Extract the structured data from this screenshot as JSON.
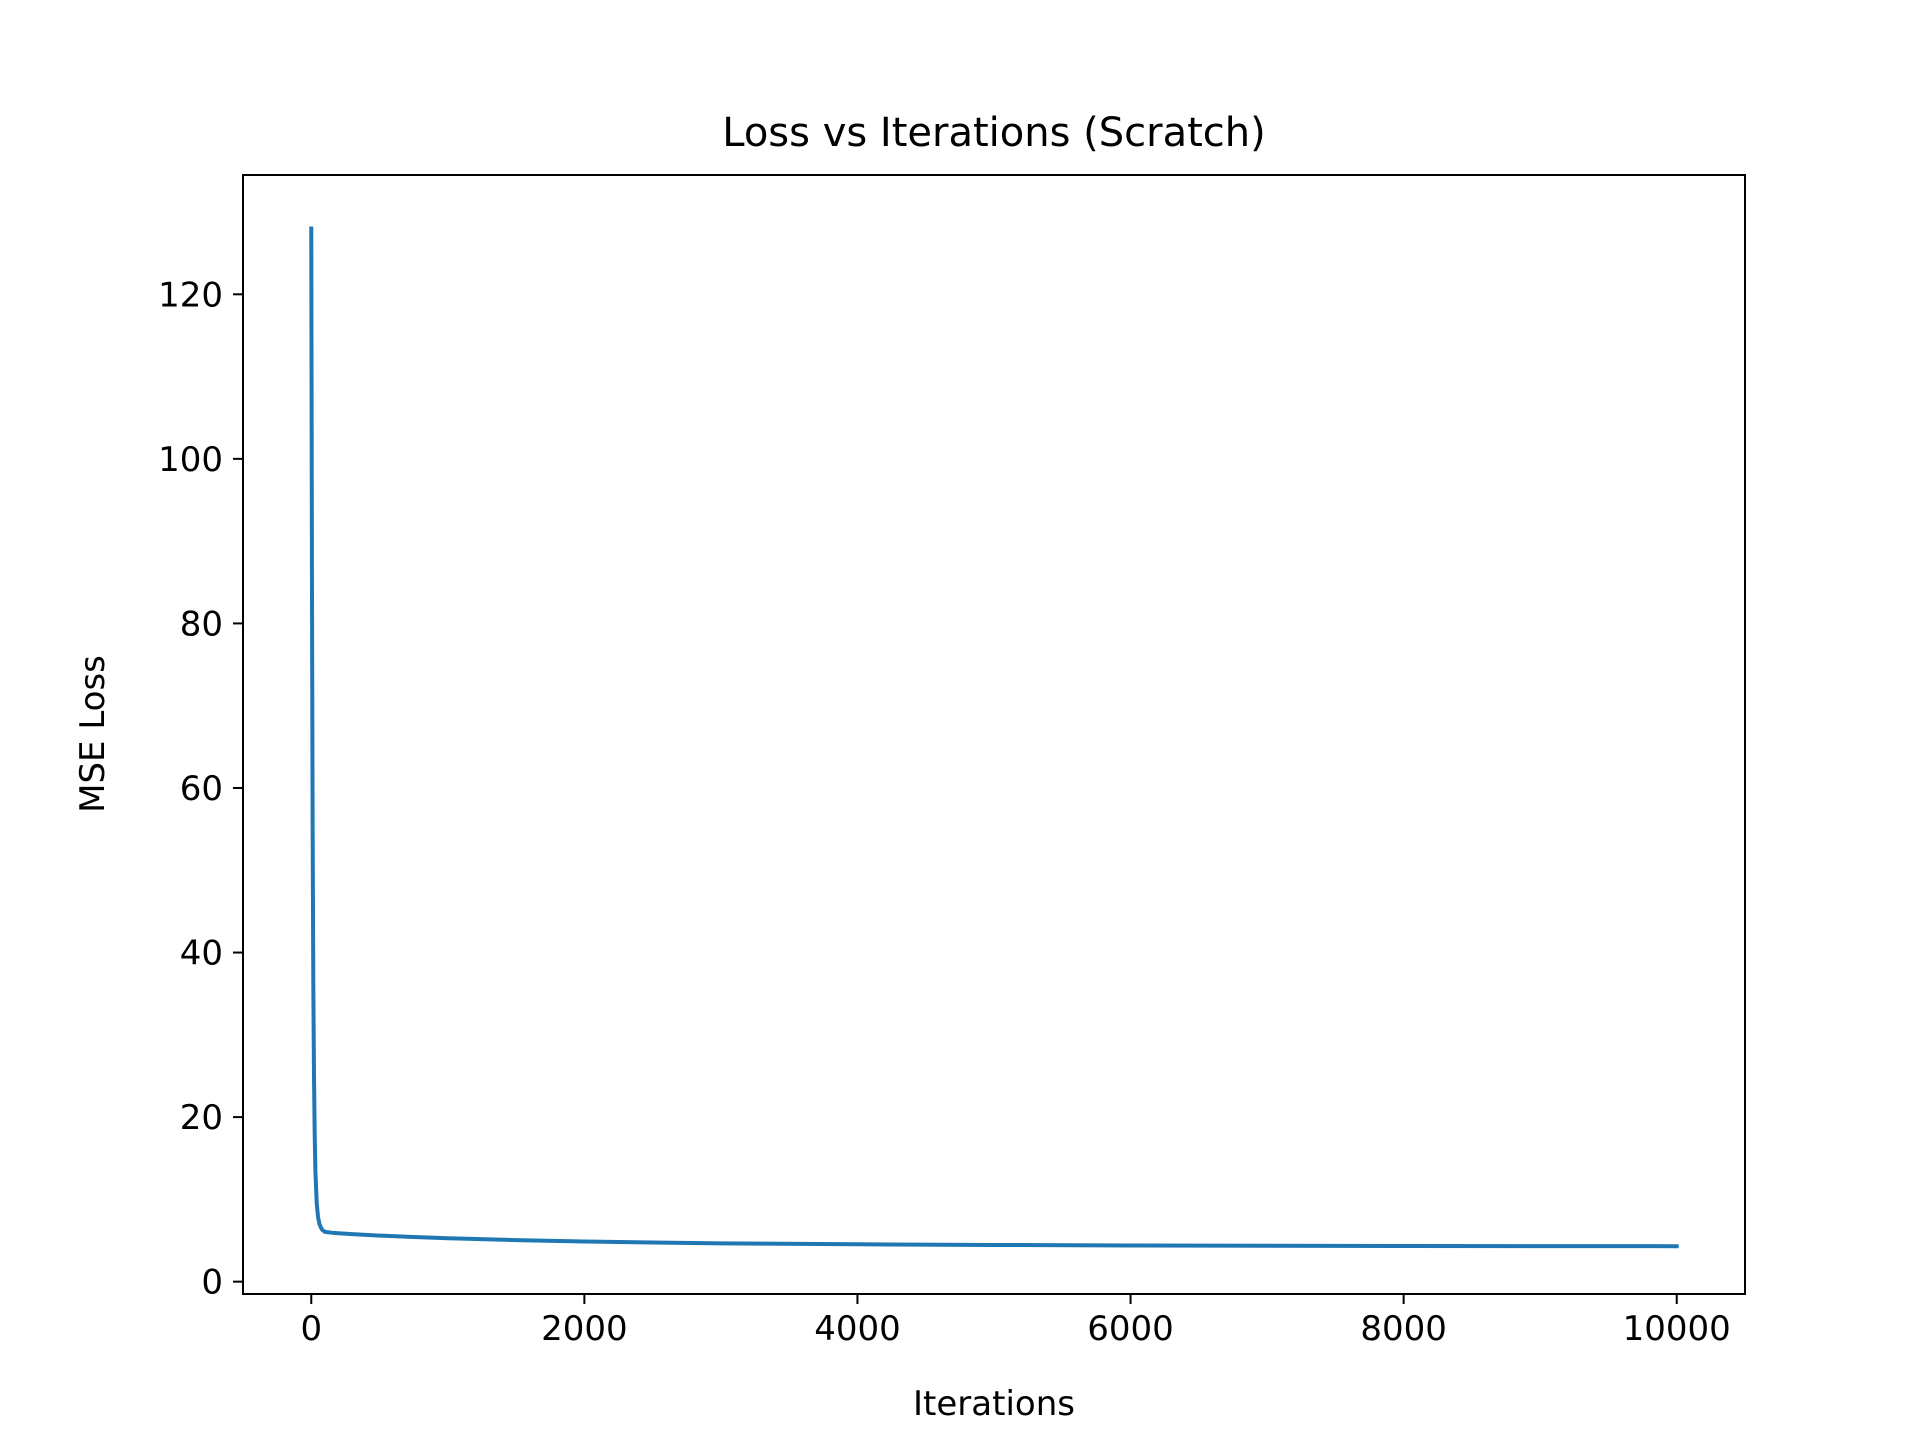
{
  "chart_data": {
    "type": "line",
    "title": "Loss vs Iterations (Scratch)",
    "xlabel": "Iterations",
    "ylabel": "MSE Loss",
    "xlim": [
      -500,
      10500
    ],
    "ylim": [
      -1.5,
      134.5
    ],
    "xticks": [
      0,
      2000,
      4000,
      6000,
      8000,
      10000
    ],
    "yticks": [
      0,
      20,
      40,
      60,
      80,
      100,
      120
    ],
    "grid": false,
    "legend": "none",
    "line_color": "#1f77b4",
    "series": [
      {
        "x": [
          0,
          2,
          5,
          10,
          15,
          20,
          25,
          30,
          40,
          50,
          60,
          70,
          80,
          100,
          150,
          200,
          300,
          500,
          750,
          1000,
          1500,
          2000,
          2500,
          3000,
          4000,
          5000,
          6000,
          7000,
          8000,
          9000,
          10000
        ],
        "y": [
          128.0,
          110.0,
          85.0,
          55.0,
          36.0,
          25.0,
          18.0,
          13.5,
          9.5,
          7.8,
          7.0,
          6.6,
          6.3,
          6.05,
          5.95,
          5.88,
          5.78,
          5.6,
          5.42,
          5.28,
          5.05,
          4.88,
          4.76,
          4.66,
          4.54,
          4.46,
          4.4,
          4.36,
          4.34,
          4.32,
          4.31
        ]
      }
    ]
  }
}
